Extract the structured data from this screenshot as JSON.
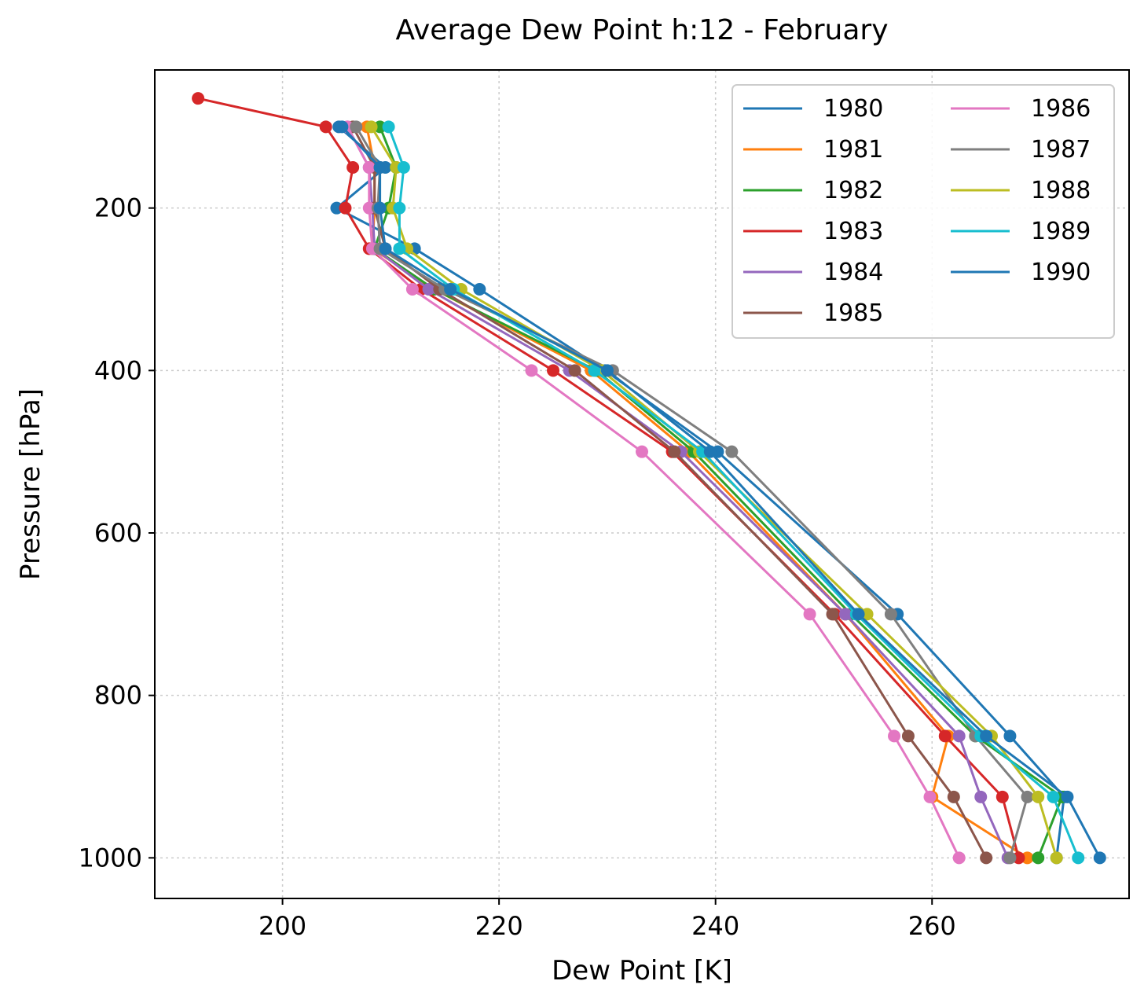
{
  "chart_data": {
    "type": "line",
    "title": "Average Dew Point h:12 - February",
    "xlabel": "Dew Point [K]",
    "ylabel": "Pressure [hPa]",
    "xlim": [
      188.2,
      278.2
    ],
    "ylim": [
      1050,
      30
    ],
    "y_inverted": true,
    "xticks": [
      200,
      220,
      240,
      260
    ],
    "yticks": [
      200,
      400,
      600,
      800,
      1000
    ],
    "grid": true,
    "legend_position": "top-right",
    "legend_columns": 2,
    "series": [
      {
        "name": "1980",
        "color": "#1f77b4",
        "points": [
          [
            205.2,
            100
          ],
          [
            209.5,
            150
          ],
          [
            205.0,
            200
          ],
          [
            212.2,
            250
          ],
          [
            218.2,
            300
          ],
          [
            229.8,
            400
          ],
          [
            240.2,
            500
          ],
          [
            256.8,
            700
          ],
          [
            267.2,
            850
          ],
          [
            272.2,
            925
          ],
          [
            271.5,
            1000
          ]
        ]
      },
      {
        "name": "1981",
        "color": "#ff7f0e",
        "points": [
          [
            207.8,
            100
          ],
          [
            208.5,
            150
          ],
          [
            208.5,
            200
          ],
          [
            208.3,
            250
          ],
          [
            214.0,
            300
          ],
          [
            228.5,
            400
          ],
          [
            237.5,
            500
          ],
          [
            252.0,
            700
          ],
          [
            261.5,
            850
          ],
          [
            260.0,
            925
          ],
          [
            268.8,
            1000
          ]
        ]
      },
      {
        "name": "1982",
        "color": "#2ca02c",
        "points": [
          [
            209.0,
            100
          ],
          [
            210.5,
            150
          ],
          [
            209.8,
            200
          ],
          [
            208.5,
            250
          ],
          [
            214.0,
            300
          ],
          [
            229.0,
            400
          ],
          [
            238.0,
            500
          ],
          [
            252.5,
            700
          ],
          [
            264.0,
            850
          ],
          [
            272.0,
            925
          ],
          [
            269.8,
            1000
          ]
        ]
      },
      {
        "name": "1983",
        "color": "#d62728",
        "points": [
          [
            192.2,
            65
          ],
          [
            204.0,
            100
          ],
          [
            206.5,
            150
          ],
          [
            205.8,
            200
          ],
          [
            208.0,
            250
          ],
          [
            212.8,
            300
          ],
          [
            225.0,
            400
          ],
          [
            236.0,
            500
          ],
          [
            251.0,
            700
          ],
          [
            261.2,
            850
          ],
          [
            266.5,
            925
          ],
          [
            268.0,
            1000
          ]
        ]
      },
      {
        "name": "1984",
        "color": "#9467bd",
        "points": [
          [
            206.0,
            100
          ],
          [
            208.0,
            150
          ],
          [
            208.3,
            200
          ],
          [
            208.5,
            250
          ],
          [
            213.5,
            300
          ],
          [
            226.5,
            400
          ],
          [
            236.8,
            500
          ],
          [
            252.0,
            700
          ],
          [
            262.5,
            850
          ],
          [
            264.5,
            925
          ],
          [
            267.0,
            1000
          ]
        ]
      },
      {
        "name": "1985",
        "color": "#8c564b",
        "points": [
          [
            206.5,
            100
          ],
          [
            208.5,
            150
          ],
          [
            208.5,
            200
          ],
          [
            209.5,
            250
          ],
          [
            214.5,
            300
          ],
          [
            227.0,
            400
          ],
          [
            236.2,
            500
          ],
          [
            250.8,
            700
          ],
          [
            257.8,
            850
          ],
          [
            262.0,
            925
          ],
          [
            265.0,
            1000
          ]
        ]
      },
      {
        "name": "1986",
        "color": "#e377c2",
        "points": [
          [
            206.0,
            100
          ],
          [
            208.0,
            150
          ],
          [
            208.0,
            200
          ],
          [
            208.3,
            250
          ],
          [
            212.0,
            300
          ],
          [
            223.0,
            400
          ],
          [
            233.2,
            500
          ],
          [
            248.7,
            700
          ],
          [
            256.5,
            850
          ],
          [
            259.8,
            925
          ],
          [
            262.5,
            1000
          ]
        ]
      },
      {
        "name": "1987",
        "color": "#7f7f7f",
        "points": [
          [
            206.8,
            100
          ],
          [
            209.0,
            150
          ],
          [
            208.8,
            200
          ],
          [
            209.0,
            250
          ],
          [
            215.0,
            300
          ],
          [
            230.5,
            400
          ],
          [
            241.5,
            500
          ],
          [
            256.2,
            700
          ],
          [
            264.0,
            850
          ],
          [
            268.8,
            925
          ],
          [
            267.2,
            1000
          ]
        ]
      },
      {
        "name": "1988",
        "color": "#bcbd22",
        "points": [
          [
            208.2,
            100
          ],
          [
            210.5,
            150
          ],
          [
            210.2,
            200
          ],
          [
            211.5,
            250
          ],
          [
            216.5,
            300
          ],
          [
            229.5,
            400
          ],
          [
            238.5,
            500
          ],
          [
            254.0,
            700
          ],
          [
            265.5,
            850
          ],
          [
            269.8,
            925
          ],
          [
            271.5,
            1000
          ]
        ]
      },
      {
        "name": "1989",
        "color": "#17becf",
        "points": [
          [
            209.8,
            100
          ],
          [
            211.2,
            150
          ],
          [
            210.8,
            200
          ],
          [
            210.8,
            250
          ],
          [
            215.8,
            300
          ],
          [
            228.8,
            400
          ],
          [
            238.8,
            500
          ],
          [
            253.0,
            700
          ],
          [
            264.5,
            850
          ],
          [
            271.2,
            925
          ],
          [
            273.5,
            1000
          ]
        ]
      },
      {
        "name": "1990",
        "color": "#1f77b4",
        "points": [
          [
            205.5,
            100
          ],
          [
            209.0,
            150
          ],
          [
            209.0,
            200
          ],
          [
            209.5,
            250
          ],
          [
            215.5,
            300
          ],
          [
            230.0,
            400
          ],
          [
            239.5,
            500
          ],
          [
            253.2,
            700
          ],
          [
            265.0,
            850
          ],
          [
            272.5,
            925
          ],
          [
            275.5,
            1000
          ]
        ]
      }
    ]
  }
}
